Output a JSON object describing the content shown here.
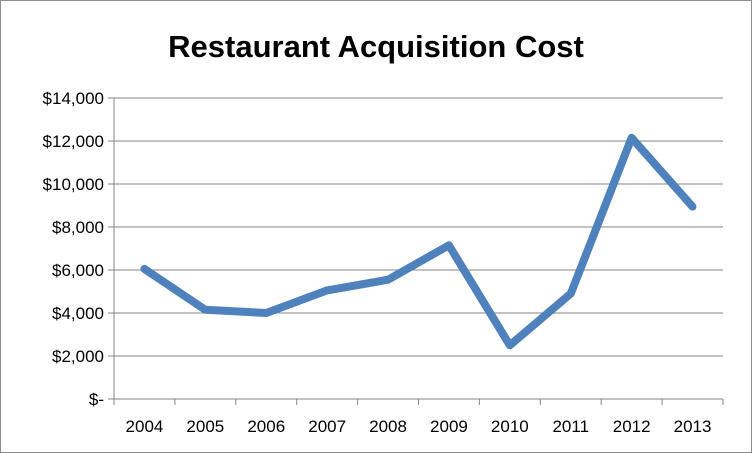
{
  "chart_data": {
    "type": "line",
    "title": "Restaurant Acquisition Cost",
    "xlabel": "",
    "ylabel": "",
    "categories": [
      "2004",
      "2005",
      "2006",
      "2007",
      "2008",
      "2009",
      "2010",
      "2011",
      "2012",
      "2013"
    ],
    "series": [
      {
        "values": [
          6050,
          4150,
          4000,
          5050,
          5550,
          7150,
          2500,
          4900,
          12150,
          8950
        ],
        "color": "#4f81bd"
      }
    ],
    "ylim": [
      0,
      14000
    ],
    "y_ticks": [
      0,
      2000,
      4000,
      6000,
      8000,
      10000,
      12000,
      14000
    ],
    "y_tick_labels": [
      "$-",
      "$2,000",
      "$4,000",
      "$6,000",
      "$8,000",
      "$10,000",
      "$12,000",
      "$14,000"
    ],
    "grid": true,
    "legend": "none",
    "gridline_color": "#868686",
    "axis_color": "#868686"
  }
}
